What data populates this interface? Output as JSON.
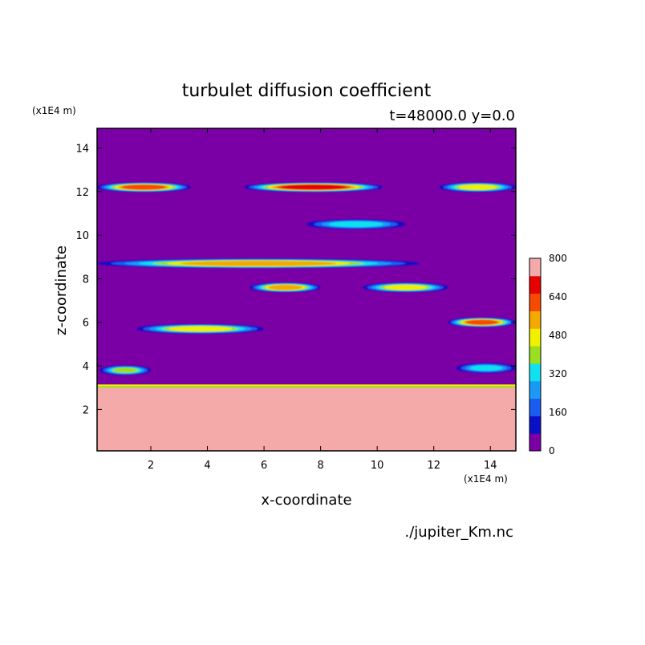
{
  "chart_data": {
    "type": "heatmap",
    "title": "turbulet diffusion coefficient",
    "subtitle": "t=48000.0 y=0.0",
    "xlabel": "x-coordinate",
    "ylabel": "z-coordinate",
    "x_unit": "(x1E4 m)",
    "y_unit": "(x1E4 m)",
    "xlim": [
      0.1,
      14.9
    ],
    "ylim": [
      0.1,
      14.9
    ],
    "xticks": [
      2,
      4,
      6,
      8,
      10,
      12,
      14
    ],
    "yticks": [
      2,
      4,
      6,
      8,
      10,
      12,
      14
    ],
    "colorbar": {
      "levels": [
        0,
        80,
        160,
        240,
        320,
        400,
        480,
        560,
        640,
        720,
        800
      ],
      "tick_labels": [
        "0",
        "160",
        "320",
        "480",
        "640",
        "800"
      ],
      "colors": [
        "#7a00a6",
        "#0a10c8",
        "#1a5cf0",
        "#1a9af5",
        "#10e0f0",
        "#9ae020",
        "#f0f000",
        "#f5a800",
        "#f54a00",
        "#e60000",
        "#f5aaaa"
      ]
    },
    "features": [
      {
        "kind": "region",
        "x0": 0.1,
        "x1": 14.9,
        "z0": 0.1,
        "z1": 3.0,
        "level": 10
      },
      {
        "kind": "band",
        "x0": 0.1,
        "x1": 3.4,
        "z": 12.2,
        "level": 8
      },
      {
        "kind": "band",
        "x0": 5.3,
        "x1": 10.2,
        "z": 12.2,
        "level": 9
      },
      {
        "kind": "band",
        "x0": 12.2,
        "x1": 14.9,
        "z": 12.2,
        "level": 6
      },
      {
        "kind": "band",
        "x0": 0.1,
        "x1": 11.5,
        "z": 8.7,
        "level": 7
      },
      {
        "kind": "band",
        "x0": 5.5,
        "x1": 8.0,
        "z": 7.6,
        "level": 7
      },
      {
        "kind": "band",
        "x0": 9.5,
        "x1": 12.5,
        "z": 7.6,
        "level": 6
      },
      {
        "kind": "band",
        "x0": 1.5,
        "x1": 6.0,
        "z": 5.7,
        "level": 6
      },
      {
        "kind": "band",
        "x0": 12.5,
        "x1": 14.9,
        "z": 6.0,
        "level": 8
      },
      {
        "kind": "band",
        "x0": 7.5,
        "x1": 11.0,
        "z": 10.5,
        "level": 4
      },
      {
        "kind": "band",
        "x0": 0.2,
        "x1": 2.0,
        "z": 3.8,
        "level": 5
      },
      {
        "kind": "band",
        "x0": 12.8,
        "x1": 14.9,
        "z": 3.9,
        "level": 4
      }
    ]
  },
  "source": "./jupiter_Km.nc"
}
